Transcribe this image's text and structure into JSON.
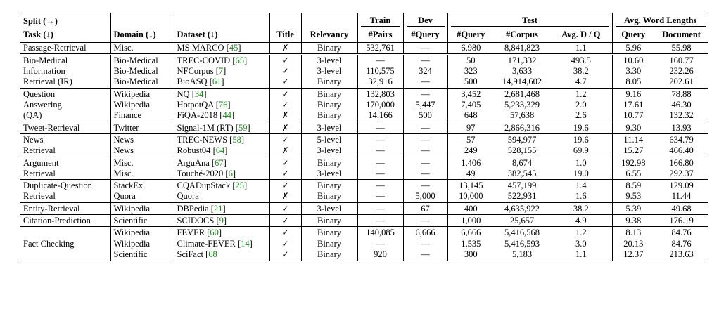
{
  "header": {
    "split": "Split (→)",
    "train": "Train",
    "dev": "Dev",
    "test": "Test",
    "avg_word_lengths": "Avg. Word Lengths",
    "task": "Task (↓)",
    "domain": "Domain (↓)",
    "dataset": "Dataset (↓)",
    "title": "Title",
    "relevancy": "Relevancy",
    "pairs": "#Pairs",
    "dev_query": "#Query",
    "test_query": "#Query",
    "corpus": "#Corpus",
    "avg_dq": "Avg. D / Q",
    "query": "Query",
    "document": "Document"
  },
  "groups": [
    {
      "task": [
        "Passage-Retrieval"
      ],
      "rows": [
        {
          "domain": "Misc.",
          "dataset": "MS MARCO",
          "ref": "45",
          "title": "✗",
          "relevancy": "Binary",
          "pairs": "532,761",
          "dev_query": "—",
          "test_query": "6,980",
          "corpus": "8,841,823",
          "avg_dq": "1.1",
          "query_len": "5.96",
          "doc_len": "55.98"
        }
      ]
    },
    {
      "task": [
        "Bio-Medical",
        "Information",
        "Retrieval (IR)"
      ],
      "rows": [
        {
          "domain": "Bio-Medical",
          "dataset": "TREC-COVID",
          "ref": "65",
          "title": "✓",
          "relevancy": "3-level",
          "pairs": "—",
          "dev_query": "—",
          "test_query": "50",
          "corpus": "171,332",
          "avg_dq": "493.5",
          "query_len": "10.60",
          "doc_len": "160.77"
        },
        {
          "domain": "Bio-Medical",
          "dataset": "NFCorpus",
          "ref": "7",
          "title": "✓",
          "relevancy": "3-level",
          "pairs": "110,575",
          "dev_query": "324",
          "test_query": "323",
          "corpus": "3,633",
          "avg_dq": "38.2",
          "query_len": "3.30",
          "doc_len": "232.26"
        },
        {
          "domain": "Bio-Medical",
          "dataset": "BioASQ",
          "ref": "61",
          "title": "✓",
          "relevancy": "Binary",
          "pairs": "32,916",
          "dev_query": "—",
          "test_query": "500",
          "corpus": "14,914,602",
          "avg_dq": "4.7",
          "query_len": "8.05",
          "doc_len": "202.61"
        }
      ]
    },
    {
      "task": [
        "Question",
        "Answering",
        "(QA)"
      ],
      "rows": [
        {
          "domain": "Wikipedia",
          "dataset": "NQ",
          "ref": "34",
          "title": "✓",
          "relevancy": "Binary",
          "pairs": "132,803",
          "dev_query": "—",
          "test_query": "3,452",
          "corpus": "2,681,468",
          "avg_dq": "1.2",
          "query_len": "9.16",
          "doc_len": "78.88"
        },
        {
          "domain": "Wikipedia",
          "dataset": "HotpotQA",
          "ref": "76",
          "title": "✓",
          "relevancy": "Binary",
          "pairs": "170,000",
          "dev_query": "5,447",
          "test_query": "7,405",
          "corpus": "5,233,329",
          "avg_dq": "2.0",
          "query_len": "17.61",
          "doc_len": "46.30"
        },
        {
          "domain": "Finance",
          "dataset": "FiQA-2018",
          "ref": "44",
          "title": "✗",
          "relevancy": "Binary",
          "pairs": "14,166",
          "dev_query": "500",
          "test_query": "648",
          "corpus": "57,638",
          "avg_dq": "2.6",
          "query_len": "10.77",
          "doc_len": "132.32"
        }
      ]
    },
    {
      "task": [
        "Tweet-Retrieval"
      ],
      "rows": [
        {
          "domain": "Twitter",
          "dataset": "Signal-1M (RT)",
          "ref": "59",
          "title": "✗",
          "relevancy": "3-level",
          "pairs": "—",
          "dev_query": "—",
          "test_query": "97",
          "corpus": "2,866,316",
          "avg_dq": "19.6",
          "query_len": "9.30",
          "doc_len": "13.93"
        }
      ]
    },
    {
      "task": [
        "News",
        "Retrieval"
      ],
      "rows": [
        {
          "domain": "News",
          "dataset": "TREC-NEWS",
          "ref": "58",
          "title": "✓",
          "relevancy": "5-level",
          "pairs": "—",
          "dev_query": "—",
          "test_query": "57",
          "corpus": "594,977",
          "avg_dq": "19.6",
          "query_len": "11.14",
          "doc_len": "634.79"
        },
        {
          "domain": "News",
          "dataset": "Robust04",
          "ref": "64",
          "title": "✗",
          "relevancy": "3-level",
          "pairs": "—",
          "dev_query": "—",
          "test_query": "249",
          "corpus": "528,155",
          "avg_dq": "69.9",
          "query_len": "15.27",
          "doc_len": "466.40"
        }
      ]
    },
    {
      "task": [
        "Argument",
        "Retrieval"
      ],
      "rows": [
        {
          "domain": "Misc.",
          "dataset": "ArguAna",
          "ref": "67",
          "title": "✓",
          "relevancy": "Binary",
          "pairs": "—",
          "dev_query": "—",
          "test_query": "1,406",
          "corpus": "8,674",
          "avg_dq": "1.0",
          "query_len": "192.98",
          "doc_len": "166.80"
        },
        {
          "domain": "Misc.",
          "dataset": "Touché-2020",
          "ref": "6",
          "title": "✓",
          "relevancy": "3-level",
          "pairs": "—",
          "dev_query": "—",
          "test_query": "49",
          "corpus": "382,545",
          "avg_dq": "19.0",
          "query_len": "6.55",
          "doc_len": "292.37"
        }
      ]
    },
    {
      "task": [
        "Duplicate-Question",
        "Retrieval"
      ],
      "rows": [
        {
          "domain": "StackEx.",
          "dataset": "CQADupStack",
          "ref": "25",
          "title": "✓",
          "relevancy": "Binary",
          "pairs": "—",
          "dev_query": "—",
          "test_query": "13,145",
          "corpus": "457,199",
          "avg_dq": "1.4",
          "query_len": "8.59",
          "doc_len": "129.09"
        },
        {
          "domain": "Quora",
          "dataset": "Quora",
          "ref": "",
          "title": "✗",
          "relevancy": "Binary",
          "pairs": "—",
          "dev_query": "5,000",
          "test_query": "10,000",
          "corpus": "522,931",
          "avg_dq": "1.6",
          "query_len": "9.53",
          "doc_len": "11.44"
        }
      ]
    },
    {
      "task": [
        "Entity-Retrieval"
      ],
      "rows": [
        {
          "domain": "Wikipedia",
          "dataset": "DBPedia",
          "ref": "21",
          "title": "✓",
          "relevancy": "3-level",
          "pairs": "—",
          "dev_query": "67",
          "test_query": "400",
          "corpus": "4,635,922",
          "avg_dq": "38.2",
          "query_len": "5.39",
          "doc_len": "49.68"
        }
      ]
    },
    {
      "task": [
        "Citation-Prediction"
      ],
      "rows": [
        {
          "domain": "Scientific",
          "dataset": "SCIDOCS",
          "ref": "9",
          "title": "✓",
          "relevancy": "Binary",
          "pairs": "—",
          "dev_query": "—",
          "test_query": "1,000",
          "corpus": "25,657",
          "avg_dq": "4.9",
          "query_len": "9.38",
          "doc_len": "176.19"
        }
      ]
    },
    {
      "task": [
        "",
        "Fact Checking",
        ""
      ],
      "rows": [
        {
          "domain": "Wikipedia",
          "dataset": "FEVER",
          "ref": "60",
          "title": "✓",
          "relevancy": "Binary",
          "pairs": "140,085",
          "dev_query": "6,666",
          "test_query": "6,666",
          "corpus": "5,416,568",
          "avg_dq": "1.2",
          "query_len": "8.13",
          "doc_len": "84.76"
        },
        {
          "domain": "Wikipedia",
          "dataset": "Climate-FEVER",
          "ref": "14",
          "title": "✓",
          "relevancy": "Binary",
          "pairs": "—",
          "dev_query": "—",
          "test_query": "1,535",
          "corpus": "5,416,593",
          "avg_dq": "3.0",
          "query_len": "20.13",
          "doc_len": "84.76"
        },
        {
          "domain": "Scientific",
          "dataset": "SciFact",
          "ref": "68",
          "title": "✓",
          "relevancy": "Binary",
          "pairs": "920",
          "dev_query": "—",
          "test_query": "300",
          "corpus": "5,183",
          "avg_dq": "1.1",
          "query_len": "12.37",
          "doc_len": "213.63"
        }
      ]
    }
  ]
}
